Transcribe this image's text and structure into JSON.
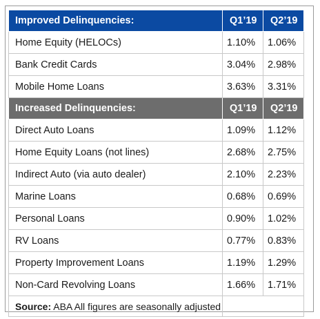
{
  "chart_data": {
    "type": "table",
    "columns": [
      "Q1’19",
      "Q2’19"
    ],
    "sections": [
      {
        "heading": "Improved Delinquencies:",
        "q1_label": "Q1’19",
        "q2_label": "Q2’19",
        "rows": [
          {
            "label": "Home Equity (HELOCs)",
            "q1": "1.10%",
            "q2": "1.06%"
          },
          {
            "label": "Bank Credit Cards",
            "q1": "3.04%",
            "q2": "2.98%"
          },
          {
            "label": "Mobile Home Loans",
            "q1": "3.63%",
            "q2": "3.31%"
          }
        ]
      },
      {
        "heading": "Increased Delinquencies:",
        "q1_label": "Q1’19",
        "q2_label": "Q2’19",
        "rows": [
          {
            "label": "Direct Auto Loans",
            "q1": "1.09%",
            "q2": "1.12%"
          },
          {
            "label": "Home Equity Loans (not lines)",
            "q1": "2.68%",
            "q2": "2.75%"
          },
          {
            "label": "Indirect Auto (via auto dealer)",
            "q1": "2.10%",
            "q2": "2.23%"
          },
          {
            "label": "Marine Loans",
            "q1": "0.68%",
            "q2": "0.69%"
          },
          {
            "label": "Personal Loans",
            "q1": "0.90%",
            "q2": "1.02%"
          },
          {
            "label": "RV Loans",
            "q1": "0.77%",
            "q2": "0.83%"
          },
          {
            "label": "Property Improvement Loans",
            "q1": "1.19%",
            "q2": "1.29%"
          },
          {
            "label": "Non-Card Revolving Loans",
            "q1": "1.66%",
            "q2": "1.71%"
          }
        ]
      }
    ],
    "source": {
      "label": "Source:",
      "text": "ABA All figures are seasonally adjusted"
    }
  },
  "colors": {
    "improved_header": "#0b4aa2",
    "increased_header": "#6d6d6d",
    "header_text": "#ffffff"
  }
}
